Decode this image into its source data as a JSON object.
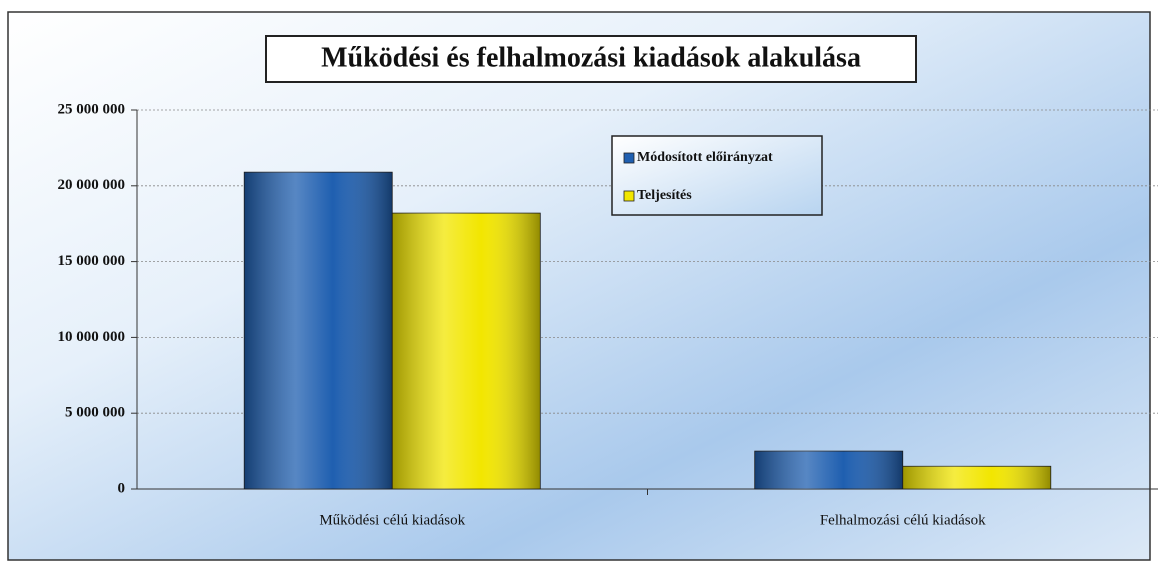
{
  "chart_data": {
    "type": "bar",
    "title": "Működési és felhalmozási kiadások alakulása",
    "categories": [
      "Működési célú kiadások",
      "Felhalmozási célú kiadások"
    ],
    "series": [
      {
        "name": "Módosított előirányzat",
        "color": "#1f5fb0",
        "values": [
          20900000,
          2500000
        ]
      },
      {
        "name": "Teljesítés",
        "color": "#f2e600",
        "values": [
          18200000,
          1500000
        ]
      }
    ],
    "ylim": [
      0,
      25000000
    ],
    "yticks": [
      0,
      {
        "value": 5000000,
        "label": "5 000 000"
      },
      {
        "value": 10000000,
        "label": "10 000 000"
      },
      {
        "value": 15000000,
        "label": "15 000 000"
      },
      {
        "value": 20000000,
        "label": "20 000 000"
      },
      {
        "value": 25000000,
        "label": "25 000 000"
      }
    ],
    "grid": true
  }
}
